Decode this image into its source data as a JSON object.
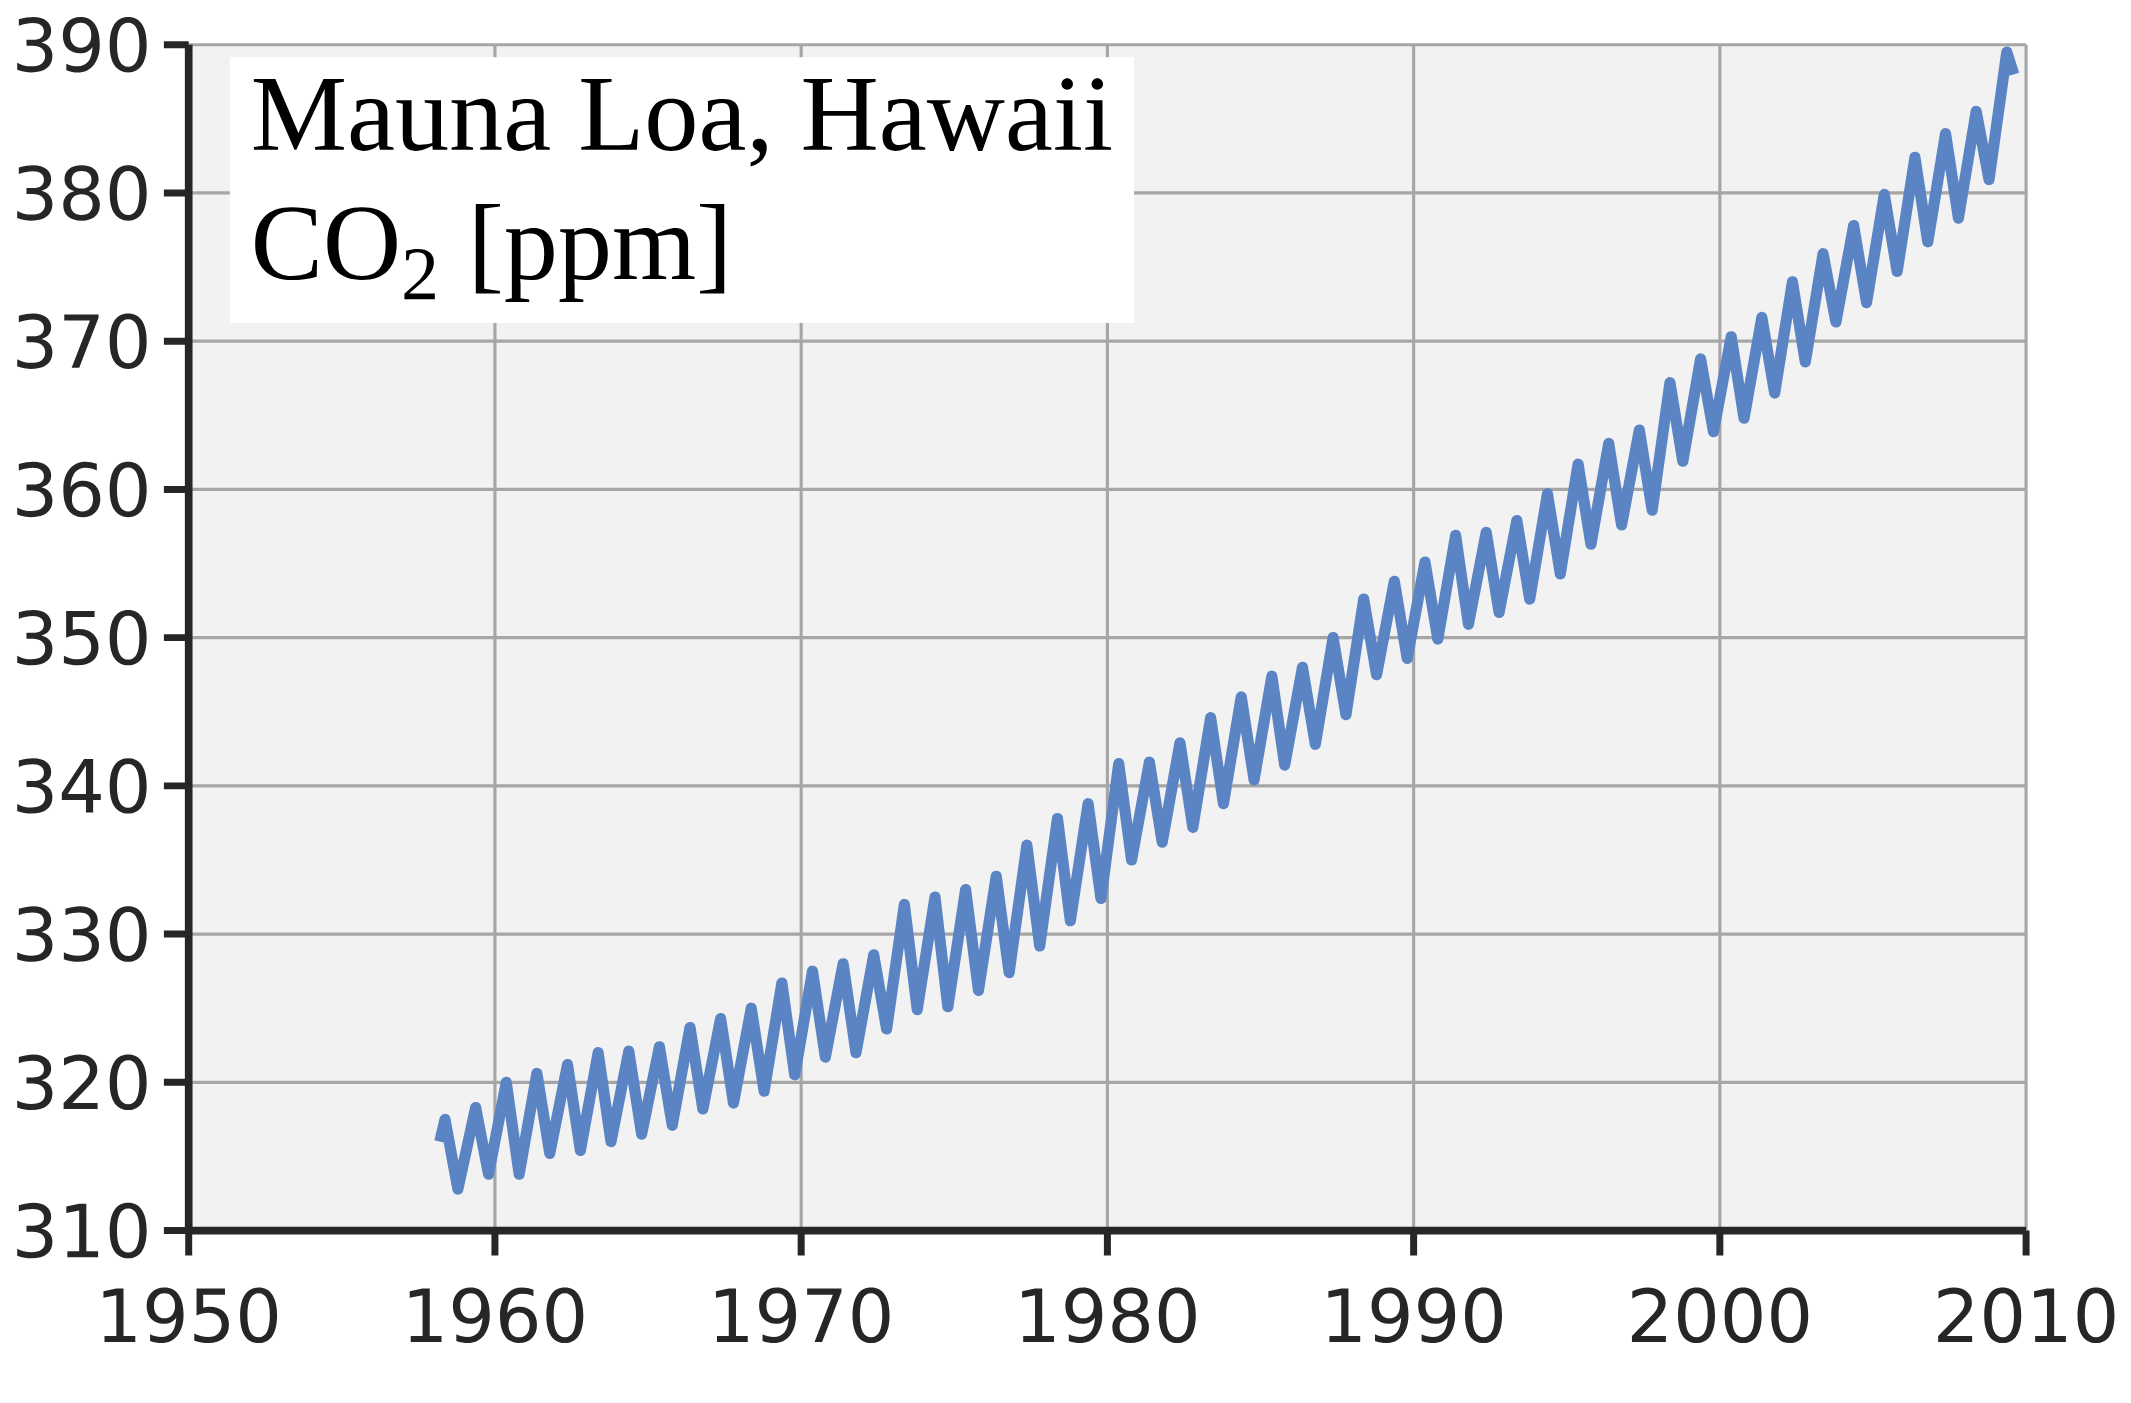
{
  "chart_data": {
    "type": "line",
    "title": "Mauna Loa, Hawaii",
    "subtitle": "CO$_{2}$ [ppm]",
    "series": [
      {
        "color": "#5b84c4",
        "x": [
          1958.2,
          1958.37,
          1958.79,
          1959.37,
          1959.79,
          1960.37,
          1960.79,
          1961.37,
          1961.79,
          1962.37,
          1962.79,
          1963.37,
          1963.79,
          1964.37,
          1964.79,
          1965.37,
          1965.79,
          1966.37,
          1966.79,
          1967.37,
          1967.79,
          1968.37,
          1968.79,
          1969.37,
          1969.79,
          1970.37,
          1970.79,
          1971.37,
          1971.79,
          1972.37,
          1972.79,
          1973.37,
          1973.79,
          1974.37,
          1974.79,
          1975.37,
          1975.79,
          1976.37,
          1976.79,
          1977.37,
          1977.79,
          1978.37,
          1978.79,
          1979.37,
          1979.79,
          1980.37,
          1980.79,
          1981.37,
          1981.79,
          1982.37,
          1982.79,
          1983.37,
          1983.79,
          1984.37,
          1984.79,
          1985.37,
          1985.79,
          1986.37,
          1986.79,
          1987.37,
          1987.79,
          1988.37,
          1988.79,
          1989.37,
          1989.79,
          1990.37,
          1990.79,
          1991.37,
          1991.79,
          1992.37,
          1992.79,
          1993.37,
          1993.79,
          1994.37,
          1994.79,
          1995.37,
          1995.79,
          1996.37,
          1996.79,
          1997.37,
          1997.79,
          1998.37,
          1998.79,
          1999.37,
          1999.79,
          2000.37,
          2000.79,
          2001.37,
          2001.79,
          2002.37,
          2002.79,
          2003.37,
          2003.79,
          2004.37,
          2004.79,
          2005.37,
          2005.79,
          2006.37,
          2006.79,
          2007.37,
          2007.79,
          2008.37,
          2008.79,
          2009.37,
          2009.6
        ],
        "values": [
          316.0,
          317.5,
          312.8,
          318.3,
          313.8,
          320.0,
          313.8,
          320.6,
          315.2,
          321.2,
          315.4,
          322.0,
          316.0,
          322.1,
          316.5,
          322.4,
          317.1,
          323.7,
          318.2,
          324.3,
          318.6,
          325.0,
          319.4,
          326.7,
          320.5,
          327.5,
          321.7,
          328.0,
          322.0,
          328.6,
          323.6,
          332.0,
          324.9,
          332.5,
          325.1,
          333.0,
          326.2,
          333.9,
          327.4,
          336.0,
          329.2,
          337.8,
          330.9,
          338.8,
          332.4,
          341.5,
          335.0,
          341.6,
          336.2,
          342.9,
          337.2,
          344.6,
          338.8,
          346.0,
          340.4,
          347.4,
          341.4,
          348.0,
          342.8,
          350.0,
          344.8,
          352.6,
          347.5,
          353.8,
          348.6,
          355.1,
          349.9,
          356.9,
          350.9,
          357.1,
          351.7,
          357.9,
          352.6,
          359.7,
          354.3,
          361.7,
          356.3,
          363.1,
          357.6,
          364.0,
          358.6,
          367.2,
          361.9,
          368.8,
          363.9,
          370.3,
          364.8,
          371.6,
          366.5,
          374.0,
          368.6,
          375.9,
          371.3,
          377.8,
          372.6,
          379.9,
          374.7,
          382.4,
          376.7,
          384.0,
          378.3,
          385.5,
          380.9,
          389.5,
          388.0
        ]
      }
    ],
    "xlim": [
      1950,
      2010
    ],
    "xticks": [
      1950,
      1960,
      1970,
      1980,
      1990,
      2000,
      2010
    ],
    "ylim": [
      310,
      390
    ],
    "yticks": [
      310,
      320,
      330,
      340,
      350,
      360,
      370,
      380,
      390
    ],
    "grid": true
  }
}
